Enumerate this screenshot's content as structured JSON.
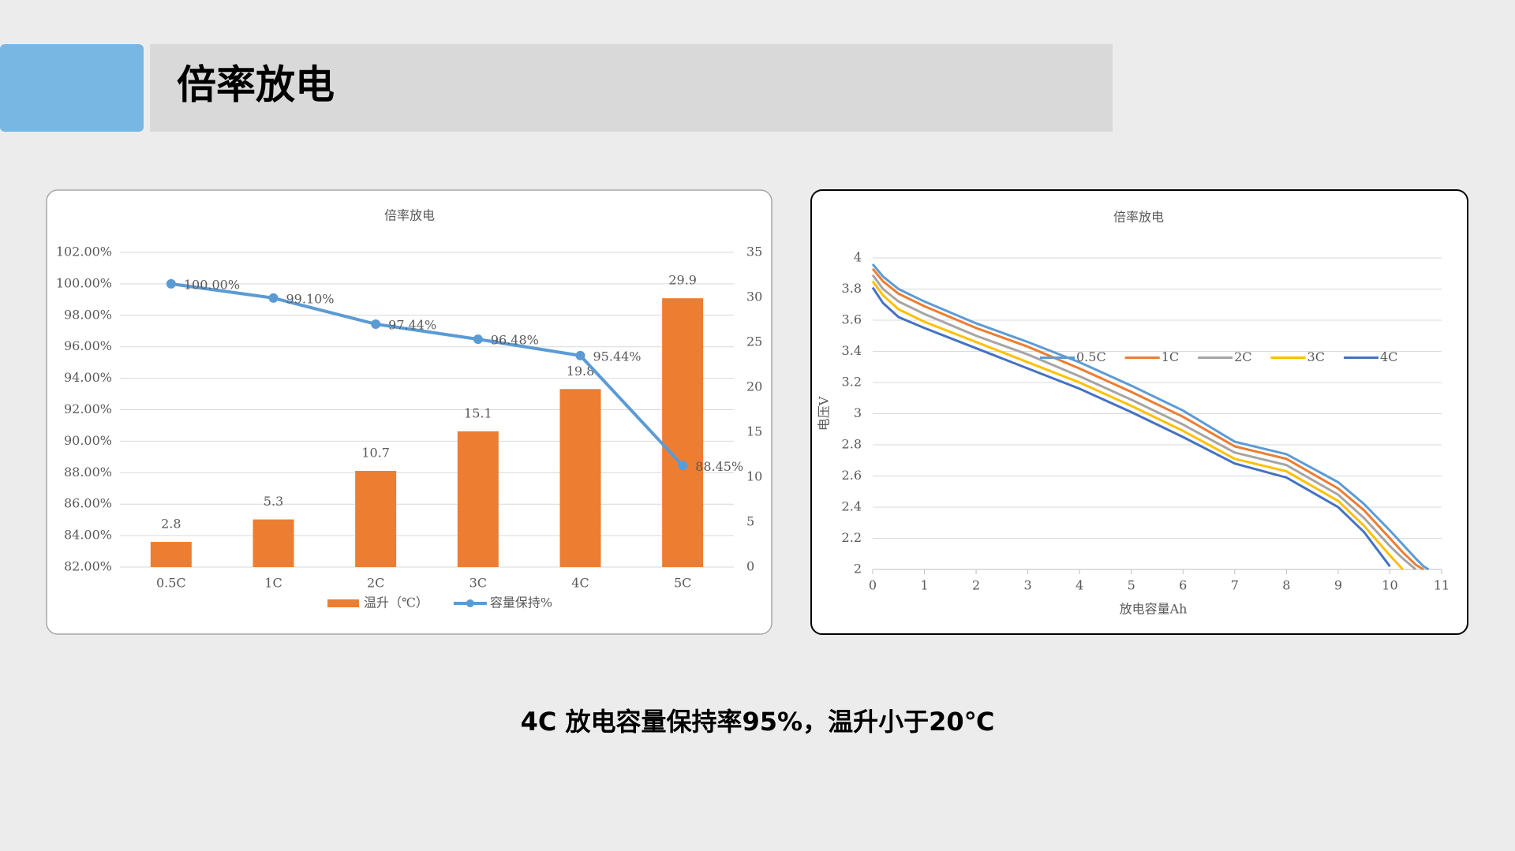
{
  "header": {
    "title": "倍率放电"
  },
  "chart_data": [
    {
      "type": "combo",
      "title": "倍率放电",
      "categories": [
        "0.5C",
        "1C",
        "2C",
        "3C",
        "4C",
        "5C"
      ],
      "series": [
        {
          "name": "温升（℃）",
          "type": "bar",
          "axis": "y2",
          "color": "#ed7d31",
          "values": [
            2.8,
            5.3,
            10.7,
            15.1,
            19.8,
            29.9
          ]
        },
        {
          "name": "容量保持%",
          "type": "line",
          "color": "#5b9bd5",
          "values": [
            100,
            99.1,
            97.44,
            96.48,
            95.44,
            88.45
          ],
          "value_labels": [
            "100.00%",
            "99.10%",
            "97.44%",
            "96.48%",
            "95.44%",
            "88.45%"
          ]
        }
      ],
      "ylim": [
        82,
        102
      ],
      "yticks": [
        {
          "value": 82,
          "label": "82.00%"
        },
        {
          "value": 84,
          "label": "84.00%"
        },
        {
          "value": 86,
          "label": "86.00%"
        },
        {
          "value": 88,
          "label": "88.00%"
        },
        {
          "value": 90,
          "label": "90.00%"
        },
        {
          "value": 92,
          "label": "92.00%"
        },
        {
          "value": 94,
          "label": "94.00%"
        },
        {
          "value": 96,
          "label": "96.00%"
        },
        {
          "value": 98,
          "label": "98.00%"
        },
        {
          "value": 100,
          "label": "100.00%"
        },
        {
          "value": 102,
          "label": "102.00%"
        }
      ],
      "y2lim": [
        0,
        35
      ],
      "y2ticks": [
        0,
        5,
        10,
        15,
        20,
        25,
        30,
        35
      ],
      "grid": true,
      "legend": "bottom"
    },
    {
      "type": "line",
      "title": "倍率放电",
      "x": [
        0,
        0.2,
        0.5,
        1,
        2,
        3,
        4,
        5,
        6,
        7,
        8,
        9,
        9.5,
        10,
        10.25,
        10.5,
        10.65,
        10.75
      ],
      "series": [
        {
          "name": "0.5C",
          "color": "#5b9bd5",
          "values": [
            3.96,
            3.88,
            3.8,
            3.72,
            3.58,
            3.46,
            3.33,
            3.18,
            3.02,
            2.82,
            2.74,
            2.56,
            2.42,
            2.25,
            2.16,
            2.07,
            2.02,
            2.0
          ]
        },
        {
          "name": "1C",
          "color": "#ed7d31",
          "values": [
            3.93,
            3.85,
            3.77,
            3.69,
            3.55,
            3.43,
            3.29,
            3.14,
            2.98,
            2.79,
            2.71,
            2.52,
            2.38,
            2.2,
            2.11,
            2.03,
            2.0,
            null
          ]
        },
        {
          "name": "2C",
          "color": "#a5a5a5",
          "values": [
            3.89,
            3.8,
            3.72,
            3.64,
            3.5,
            3.38,
            3.24,
            3.09,
            2.93,
            2.75,
            2.67,
            2.48,
            2.33,
            2.15,
            2.07,
            2.0,
            null,
            null
          ]
        },
        {
          "name": "3C",
          "color": "#ffc000",
          "values": [
            3.85,
            3.76,
            3.67,
            3.59,
            3.46,
            3.33,
            3.2,
            3.05,
            2.89,
            2.71,
            2.63,
            2.44,
            2.28,
            2.09,
            2.0,
            null,
            null,
            null
          ]
        },
        {
          "name": "4C",
          "color": "#4472c4",
          "values": [
            3.81,
            3.71,
            3.62,
            3.55,
            3.42,
            3.29,
            3.16,
            3.01,
            2.85,
            2.68,
            2.59,
            2.4,
            2.24,
            2.02,
            null,
            null,
            null,
            null
          ]
        }
      ],
      "xlim": [
        0,
        11
      ],
      "xticks": [
        0,
        1,
        2,
        3,
        4,
        5,
        6,
        7,
        8,
        9,
        10,
        11
      ],
      "ylim": [
        2,
        4
      ],
      "yticks": [
        2,
        2.2,
        2.4,
        2.6,
        2.8,
        3,
        3.2,
        3.4,
        3.6,
        3.8,
        4
      ],
      "xlabel": "放电容量Ah",
      "ylabel": "电压V",
      "grid": true,
      "legend": "top"
    }
  ],
  "caption": "4C 放电容量保持率95%，温升小于20℃"
}
